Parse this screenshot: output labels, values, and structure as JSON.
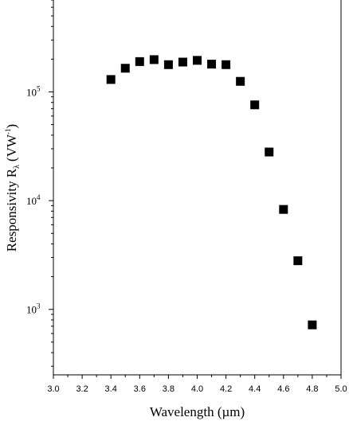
{
  "chart_data": {
    "type": "scatter",
    "xlabel": "Wavelength (µm)",
    "ylabel": "Responsivity R",
    "ylabel_subscript": "λ",
    "ylabel_unit": "(VW",
    "ylabel_unit_exponent": "-1",
    "ylabel_unit_close": ")",
    "xlim": [
      3.0,
      5.0
    ],
    "ylim": [
      250,
      700000
    ],
    "yscale": "log",
    "x_ticks": [
      "3.0",
      "3.2",
      "3.4",
      "3.6",
      "3.8",
      "4.0",
      "4.2",
      "4.4",
      "4.6",
      "4.8",
      "5.0"
    ],
    "y_ticks": [
      {
        "value": 1000,
        "base": "10",
        "exp": "3"
      },
      {
        "value": 10000,
        "base": "10",
        "exp": "4"
      },
      {
        "value": 100000,
        "base": "10",
        "exp": "5"
      }
    ],
    "grid": false,
    "marker": "square",
    "marker_color": "#000000",
    "points": [
      {
        "x": 3.4,
        "y": 130000
      },
      {
        "x": 3.5,
        "y": 165000
      },
      {
        "x": 3.6,
        "y": 190000
      },
      {
        "x": 3.7,
        "y": 198000
      },
      {
        "x": 3.8,
        "y": 178000
      },
      {
        "x": 3.9,
        "y": 188000
      },
      {
        "x": 4.0,
        "y": 195000
      },
      {
        "x": 4.1,
        "y": 180000
      },
      {
        "x": 4.2,
        "y": 178000
      },
      {
        "x": 4.3,
        "y": 125000
      },
      {
        "x": 4.4,
        "y": 76000
      },
      {
        "x": 4.5,
        "y": 28000
      },
      {
        "x": 4.6,
        "y": 8300
      },
      {
        "x": 4.7,
        "y": 2800
      },
      {
        "x": 4.8,
        "y": 720
      }
    ]
  }
}
